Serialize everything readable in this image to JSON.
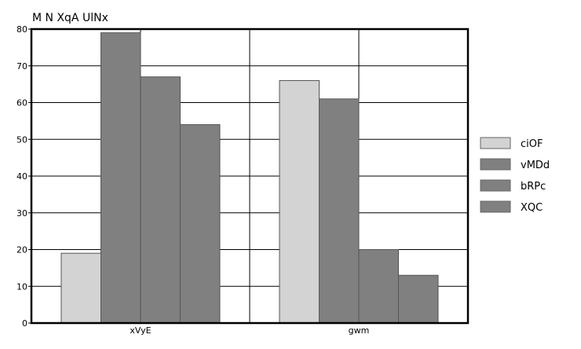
{
  "chart_data": {
    "type": "bar",
    "title": "M N XqA UlNx",
    "xlabel": "",
    "ylabel": "",
    "ylim": [
      0,
      80
    ],
    "yticks": [
      "0",
      "10",
      "20",
      "30",
      "40",
      "50",
      "60",
      "70",
      "80"
    ],
    "categories": [
      "xVyE",
      "gwm"
    ],
    "series": [
      {
        "name": "ciOF",
        "values": [
          19,
          66
        ],
        "color": "#d3d3d3"
      },
      {
        "name": "vMDd",
        "values": [
          79,
          61
        ],
        "color": "#808080"
      },
      {
        "name": "bRPc",
        "values": [
          67,
          20
        ],
        "color": "#808080"
      },
      {
        "name": "XQC",
        "values": [
          54,
          13
        ],
        "color": "#808080"
      }
    ],
    "grid": true,
    "legend_position": "right"
  }
}
